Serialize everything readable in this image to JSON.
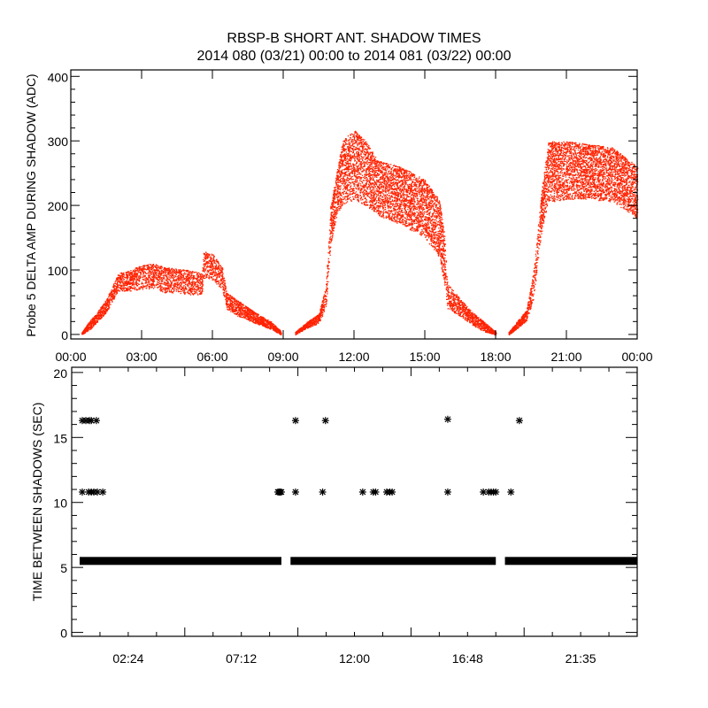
{
  "title_line1": "RBSP-B SHORT ANT. SHADOW TIMES",
  "title_line2": "2014 080 (03/21) 00:00 to 2014 081 (03/22) 00:00",
  "colors": {
    "points_top": "#ff2200",
    "points_bottom": "#000000",
    "axes": "#000000"
  },
  "chart_data": [
    {
      "type": "scatter",
      "ylabel": "Probe 5 DELTA AMP DURING SHADOW (ADC)",
      "xlabel": "",
      "xlim_hours": [
        0,
        24
      ],
      "ylim": [
        -7,
        410
      ],
      "xticks": [
        "00:00",
        "03:00",
        "06:00",
        "09:00",
        "12:00",
        "15:00",
        "18:00",
        "21:00",
        "00:00"
      ],
      "yticks": [
        "0",
        "100",
        "200",
        "300",
        "400"
      ],
      "grid": false,
      "bands": [
        [
          [
            0.45,
            0,
            3
          ],
          [
            0.8,
            8,
            22
          ],
          [
            1.0,
            15,
            30
          ],
          [
            1.5,
            35,
            55
          ],
          [
            2.0,
            68,
            95
          ],
          [
            2.5,
            68,
            100
          ],
          [
            3.0,
            70,
            108
          ],
          [
            3.5,
            72,
            110
          ],
          [
            4.0,
            65,
            105
          ],
          [
            4.5,
            65,
            102
          ],
          [
            5.0,
            62,
            100
          ],
          [
            5.55,
            62,
            95
          ],
          [
            5.6,
            88,
            130
          ],
          [
            6.0,
            85,
            125
          ],
          [
            6.4,
            70,
            105
          ],
          [
            6.6,
            40,
            65
          ],
          [
            7.0,
            30,
            55
          ],
          [
            7.5,
            22,
            42
          ],
          [
            8.0,
            15,
            30
          ],
          [
            8.5,
            8,
            20
          ],
          [
            8.9,
            0,
            5
          ]
        ],
        [
          [
            9.5,
            0,
            4
          ],
          [
            10.0,
            10,
            20
          ],
          [
            10.5,
            18,
            32
          ],
          [
            10.8,
            40,
            75
          ],
          [
            11.0,
            140,
            200
          ],
          [
            11.3,
            190,
            260
          ],
          [
            11.5,
            200,
            300
          ],
          [
            12.0,
            210,
            320
          ],
          [
            12.5,
            200,
            300
          ],
          [
            13.0,
            185,
            270
          ],
          [
            14.0,
            170,
            260
          ],
          [
            15.0,
            150,
            240
          ],
          [
            15.6,
            120,
            210
          ],
          [
            15.85,
            70,
            150
          ],
          [
            15.95,
            40,
            80
          ],
          [
            16.5,
            28,
            55
          ],
          [
            17.0,
            15,
            35
          ],
          [
            17.5,
            5,
            20
          ],
          [
            18.0,
            0,
            4
          ]
        ],
        [
          [
            18.55,
            0,
            4
          ],
          [
            19.0,
            12,
            25
          ],
          [
            19.3,
            22,
            38
          ],
          [
            19.6,
            55,
            100
          ],
          [
            19.9,
            150,
            210
          ],
          [
            20.2,
            205,
            300
          ],
          [
            21.0,
            210,
            300
          ],
          [
            22.0,
            210,
            295
          ],
          [
            23.0,
            205,
            290
          ],
          [
            24.0,
            180,
            260
          ]
        ]
      ]
    },
    {
      "type": "scatter",
      "ylabel": "TIME BETWEEN SHADOWS (SEC)",
      "xlabel": "",
      "xlim_hours": [
        0,
        24
      ],
      "ylim": [
        -0.3,
        20.4
      ],
      "xticks": [
        "02:24",
        "07:12",
        "12:00",
        "16:48",
        "21:35"
      ],
      "xtick_hours": [
        2.4,
        7.2,
        12.0,
        16.8,
        21.6
      ],
      "yticks": [
        "0",
        "5",
        "10",
        "15",
        "20"
      ],
      "grid": false,
      "marker": "asterisk",
      "continuous_runs": {
        "value": 5.5,
        "hour_ranges": [
          [
            0.45,
            8.9
          ],
          [
            9.4,
            18.0
          ],
          [
            18.5,
            24.0
          ]
        ]
      },
      "points": [
        [
          0.45,
          16.3
        ],
        [
          0.6,
          16.3
        ],
        [
          0.75,
          16.3
        ],
        [
          0.83,
          16.3
        ],
        [
          1.05,
          16.3
        ],
        [
          9.5,
          16.3
        ],
        [
          10.77,
          16.3
        ],
        [
          15.96,
          16.4
        ],
        [
          19.0,
          16.3
        ],
        [
          0.45,
          10.8
        ],
        [
          0.72,
          10.8
        ],
        [
          0.83,
          10.8
        ],
        [
          0.94,
          10.8
        ],
        [
          1.09,
          10.8
        ],
        [
          1.32,
          10.8
        ],
        [
          8.75,
          10.8
        ],
        [
          8.8,
          10.8
        ],
        [
          8.85,
          10.8
        ],
        [
          8.9,
          10.8
        ],
        [
          9.5,
          10.8
        ],
        [
          10.65,
          10.8
        ],
        [
          12.35,
          10.8
        ],
        [
          12.8,
          10.8
        ],
        [
          12.9,
          10.8
        ],
        [
          13.37,
          10.8
        ],
        [
          13.5,
          10.8
        ],
        [
          13.6,
          10.8
        ],
        [
          15.96,
          10.8
        ],
        [
          17.47,
          10.8
        ],
        [
          17.7,
          10.8
        ],
        [
          17.8,
          10.8
        ],
        [
          17.9,
          10.8
        ],
        [
          18.0,
          10.8
        ],
        [
          18.64,
          10.8
        ]
      ]
    }
  ]
}
